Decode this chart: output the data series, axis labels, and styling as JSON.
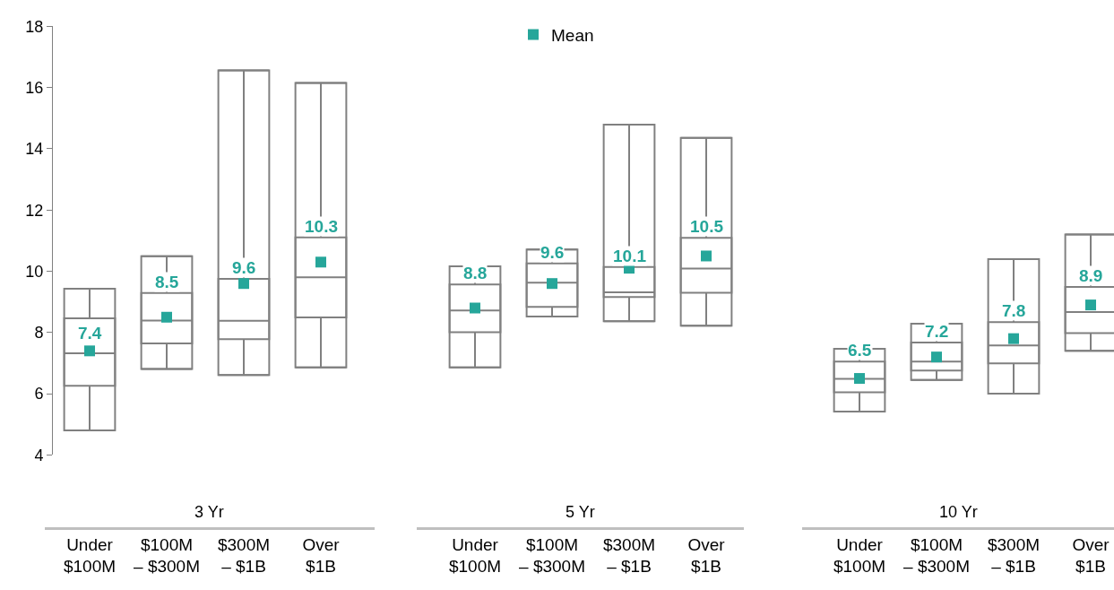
{
  "chart_data": [
    {
      "type": "box",
      "xlabel": "3 Yr",
      "categories": [
        "Under $100M",
        "$100M – $300M",
        "$300M – $1B",
        "Over $1B"
      ],
      "color": "#808080",
      "ylim": [
        4,
        18
      ],
      "yticks": [
        4,
        6,
        8,
        10,
        12,
        14,
        16,
        18
      ],
      "grid": false,
      "legend": false,
      "boxes": [
        {
          "low": 4.8,
          "q1": 6.26,
          "median": 7.32,
          "q3": 8.46,
          "high": 9.43
        },
        {
          "low": 6.81,
          "q1": 7.64,
          "median": 8.39,
          "q3": 9.29,
          "high": 10.49
        },
        {
          "low": 6.61,
          "q1": 7.78,
          "median": 8.38,
          "q3": 9.75,
          "high": 16.56
        },
        {
          "low": 6.86,
          "q1": 8.49,
          "median": 9.8,
          "q3": 11.11,
          "high": 16.15
        }
      ],
      "series": [
        {
          "type": "scatter",
          "color": "#26a69a",
          "marker": "square",
          "data_labels": true,
          "values": [
            7.4,
            8.5,
            9.6,
            10.3
          ]
        }
      ]
    },
    {
      "type": "box",
      "xlabel": "5 Yr",
      "categories": [
        "Under $100M",
        "$100M – $300M",
        "$300M – $1B",
        "Over $1B"
      ],
      "color": "#808080",
      "ylim": [
        4,
        18
      ],
      "yticks": [
        4,
        6,
        8,
        10,
        12,
        14,
        16,
        18
      ],
      "tick_labels": "x",
      "grid": false,
      "legend": "top",
      "boxes": [
        {
          "low": 6.86,
          "q1": 8.01,
          "median": 8.72,
          "q3": 9.57,
          "high": 10.16
        },
        {
          "low": 8.52,
          "q1": 8.84,
          "median": 9.63,
          "q3": 10.26,
          "high": 10.71
        },
        {
          "low": 8.37,
          "q1": 9.16,
          "median": 9.31,
          "q3": 10.14,
          "high": 14.79
        },
        {
          "low": 8.22,
          "q1": 9.3,
          "median": 10.09,
          "q3": 11.09,
          "high": 14.36
        }
      ],
      "series": [
        {
          "type": "scatter",
          "name": "Mean",
          "color": "#26a69a",
          "marker": "square",
          "data_labels": true,
          "values": [
            8.8,
            9.6,
            10.1,
            10.5
          ]
        }
      ]
    },
    {
      "type": "box",
      "xlabel": "10 Yr",
      "categories": [
        "Under $100M",
        "$100M – $300M",
        "$300M – $1B",
        "Over $1B"
      ],
      "color": "#808080",
      "ylim": [
        4,
        18
      ],
      "yticks": [
        4,
        6,
        8,
        10,
        12,
        14,
        16,
        18
      ],
      "tick_labels": "x",
      "grid": false,
      "legend": false,
      "boxes": [
        {
          "low": 5.42,
          "q1": 6.05,
          "median": 6.49,
          "q3": 7.05,
          "high": 7.47
        },
        {
          "low": 6.45,
          "q1": 6.76,
          "median": 7.05,
          "q3": 7.67,
          "high": 8.29
        },
        {
          "low": 6.0,
          "q1": 6.99,
          "median": 7.58,
          "q3": 8.34,
          "high": 10.4
        },
        {
          "low": 7.4,
          "q1": 7.98,
          "median": 8.67,
          "q3": 9.49,
          "high": 11.2
        }
      ],
      "series": [
        {
          "type": "scatter",
          "color": "#26a69a",
          "marker": "square",
          "data_labels": true,
          "values": [
            6.5,
            7.2,
            7.8,
            8.9
          ]
        }
      ]
    }
  ]
}
